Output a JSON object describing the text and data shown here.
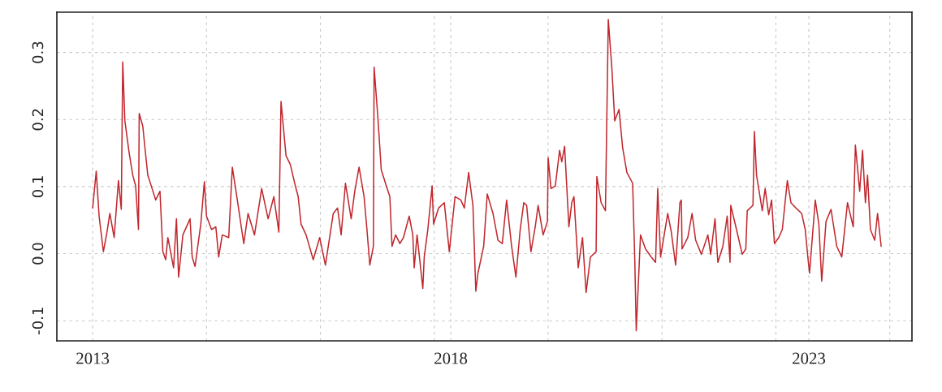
{
  "chart_data": {
    "type": "line",
    "x": [
      2013.0,
      2013.05,
      2013.09,
      2013.15,
      2013.2,
      2013.24,
      2013.3,
      2013.36,
      2013.4,
      2013.42,
      2013.45,
      2013.51,
      2013.56,
      2013.6,
      2013.64,
      2013.65,
      2013.7,
      2013.73,
      2013.77,
      2013.83,
      2013.88,
      2013.94,
      2013.98,
      2014.02,
      2014.05,
      2014.13,
      2014.17,
      2014.2,
      2014.26,
      2014.36,
      2014.39,
      2014.43,
      2014.51,
      2014.56,
      2014.59,
      2014.66,
      2014.72,
      2014.76,
      2014.81,
      2014.9,
      2014.95,
      2015.02,
      2015.11,
      2015.17,
      2015.26,
      2015.36,
      2015.45,
      2015.53,
      2015.6,
      2015.63,
      2015.7,
      2015.76,
      2015.83,
      2015.87,
      2015.91,
      2015.98,
      2016.08,
      2016.17,
      2016.25,
      2016.36,
      2016.42,
      2016.47,
      2016.53,
      2016.61,
      2016.66,
      2016.72,
      2016.79,
      2016.83,
      2016.87,
      2016.92,
      2016.93,
      2016.98,
      2017.03,
      2017.1,
      2017.15,
      2017.18,
      2017.23,
      2017.29,
      2017.34,
      2017.42,
      2017.47,
      2017.49,
      2017.53,
      2017.61,
      2017.63,
      2017.68,
      2017.74,
      2017.76,
      2017.83,
      2017.91,
      2017.98,
      2018.06,
      2018.14,
      2018.19,
      2018.25,
      2018.31,
      2018.35,
      2018.38,
      2018.46,
      2018.51,
      2018.59,
      2018.66,
      2018.72,
      2018.78,
      2018.85,
      2018.91,
      2018.97,
      2019.02,
      2019.06,
      2019.12,
      2019.18,
      2019.22,
      2019.29,
      2019.35,
      2019.36,
      2019.4,
      2019.46,
      2019.52,
      2019.55,
      2019.59,
      2019.65,
      2019.69,
      2019.72,
      2019.78,
      2019.84,
      2019.89,
      2019.95,
      2020.03,
      2020.04,
      2020.1,
      2020.16,
      2020.2,
      2020.25,
      2020.29,
      2020.35,
      2020.4,
      2020.46,
      2020.54,
      2020.57,
      2020.59,
      2020.65,
      2020.72,
      2020.8,
      2020.86,
      2020.89,
      2020.93,
      2021.03,
      2021.08,
      2021.14,
      2021.2,
      2021.22,
      2021.23,
      2021.31,
      2021.37,
      2021.42,
      2021.5,
      2021.59,
      2021.63,
      2021.69,
      2021.73,
      2021.8,
      2021.86,
      2021.9,
      2021.91,
      2021.99,
      2022.07,
      2022.12,
      2022.14,
      2022.22,
      2022.24,
      2022.27,
      2022.35,
      2022.39,
      2022.44,
      2022.48,
      2022.52,
      2022.58,
      2022.63,
      2022.7,
      2022.75,
      2022.82,
      2022.9,
      2022.95,
      2022.99,
      2023.01,
      2023.09,
      2023.14,
      2023.18,
      2023.24,
      2023.31,
      2023.39,
      2023.46,
      2023.54,
      2023.62,
      2023.65,
      2023.71,
      2023.75,
      2023.79,
      2023.82,
      2023.86,
      2023.92,
      2023.96,
      2024.01
    ],
    "series": [
      {
        "color": "#c0272d",
        "values": [
          0.068,
          0.123,
          0.056,
          0.003,
          0.032,
          0.06,
          0.024,
          0.109,
          0.066,
          0.286,
          0.198,
          0.15,
          0.117,
          0.101,
          0.036,
          0.209,
          0.19,
          0.158,
          0.117,
          0.097,
          0.08,
          0.093,
          0.003,
          -0.009,
          0.024,
          -0.021,
          0.052,
          -0.035,
          0.028,
          0.052,
          -0.005,
          -0.019,
          0.044,
          0.107,
          0.056,
          0.036,
          0.04,
          -0.005,
          0.028,
          0.024,
          0.129,
          0.08,
          0.015,
          0.06,
          0.028,
          0.097,
          0.052,
          0.085,
          0.032,
          0.227,
          0.146,
          0.133,
          0.101,
          0.085,
          0.044,
          0.028,
          -0.009,
          0.024,
          -0.017,
          0.06,
          0.068,
          0.028,
          0.105,
          0.052,
          0.093,
          0.129,
          0.085,
          0.036,
          -0.017,
          0.011,
          0.278,
          0.207,
          0.125,
          0.101,
          0.085,
          0.011,
          0.028,
          0.015,
          0.024,
          0.056,
          0.028,
          -0.021,
          0.028,
          -0.052,
          -0.005,
          0.036,
          0.101,
          0.044,
          0.068,
          0.076,
          0.003,
          0.085,
          0.08,
          0.068,
          0.121,
          0.072,
          -0.056,
          -0.029,
          0.011,
          0.089,
          0.06,
          0.02,
          0.015,
          0.08,
          0.011,
          -0.035,
          0.036,
          0.076,
          0.072,
          0.003,
          0.04,
          0.072,
          0.028,
          0.048,
          0.143,
          0.097,
          0.101,
          0.154,
          0.137,
          0.16,
          0.04,
          0.076,
          0.085,
          -0.021,
          0.024,
          -0.058,
          -0.005,
          0.003,
          0.115,
          0.076,
          0.064,
          0.349,
          0.276,
          0.198,
          0.215,
          0.158,
          0.121,
          0.105,
          -0.009,
          -0.115,
          0.028,
          0.007,
          -0.005,
          -0.013,
          0.097,
          -0.005,
          0.06,
          0.032,
          -0.017,
          0.076,
          0.08,
          0.007,
          0.024,
          0.06,
          0.02,
          -0.001,
          0.028,
          -0.001,
          0.052,
          -0.013,
          0.011,
          0.056,
          -0.013,
          0.072,
          0.036,
          -0.001,
          0.007,
          0.064,
          0.072,
          0.182,
          0.117,
          0.064,
          0.097,
          0.058,
          0.08,
          0.015,
          0.024,
          0.036,
          0.109,
          0.076,
          0.068,
          0.06,
          0.036,
          -0.009,
          -0.029,
          0.08,
          0.044,
          -0.041,
          0.048,
          0.066,
          0.011,
          -0.005,
          0.076,
          0.04,
          0.162,
          0.093,
          0.154,
          0.076,
          0.117,
          0.036,
          0.02,
          0.06,
          0.011
        ]
      }
    ],
    "xlim": [
      2012.5,
      2024.44
    ],
    "xticks": [
      2013,
      {
        "value": 2014.59,
        "label": null
      },
      {
        "value": 2016.18,
        "label": null
      },
      {
        "value": 2017.77,
        "label": null
      },
      2018,
      {
        "value": 2019.36,
        "label": null
      },
      {
        "value": 2020.95,
        "label": null
      },
      {
        "value": 2022.54,
        "label": null
      },
      2023,
      {
        "value": 2024.13,
        "label": null
      }
    ],
    "ylim": [
      -0.13,
      0.36
    ],
    "yticks": [
      {
        "value": -0.1,
        "label": "-0.1"
      },
      {
        "value": 0.0,
        "label": "0.0"
      },
      0.1,
      0.2,
      0.3
    ],
    "grid": true,
    "line_style": "solid"
  }
}
